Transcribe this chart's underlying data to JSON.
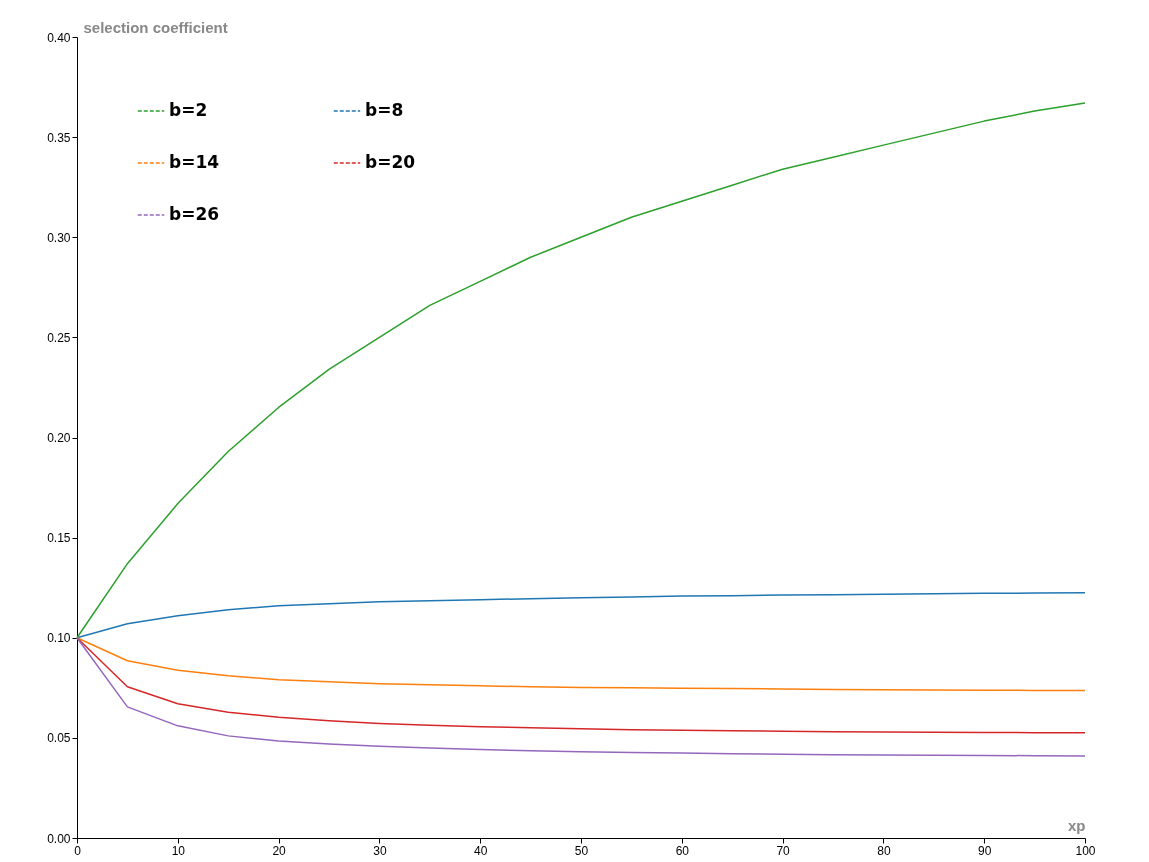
{
  "chart_data": {
    "type": "line",
    "xlabel": "xp",
    "ylabel": "selection coefficient",
    "x": [
      0,
      5,
      10,
      15,
      20,
      25,
      30,
      35,
      40,
      45,
      50,
      55,
      60,
      65,
      70,
      75,
      80,
      85,
      90,
      95,
      100
    ],
    "series": [
      {
        "name": "b=2",
        "color": "#2ca02c",
        "values": [
          0.1,
          0.137,
          0.167,
          0.193,
          0.215,
          0.234,
          0.25,
          0.266,
          0.278,
          0.29,
          0.3,
          0.31,
          0.318,
          0.326,
          0.334,
          0.34,
          0.346,
          0.352,
          0.358,
          0.363,
          0.367
        ]
      },
      {
        "name": "b=8",
        "color": "#1f77b4",
        "values": [
          0.1,
          0.107,
          0.111,
          0.114,
          0.116,
          0.117,
          0.118,
          0.1185,
          0.119,
          0.1195,
          0.12,
          0.1204,
          0.1208,
          0.121,
          0.1213,
          0.1215,
          0.1217,
          0.122,
          0.1222,
          0.1223,
          0.1225
        ]
      },
      {
        "name": "b=14",
        "color": "#ff7f0e",
        "values": [
          0.1,
          0.0885,
          0.0838,
          0.081,
          0.079,
          0.078,
          0.077,
          0.0765,
          0.076,
          0.0755,
          0.0752,
          0.075,
          0.0748,
          0.0746,
          0.0744,
          0.0742,
          0.074,
          0.0739,
          0.0738,
          0.0737,
          0.0736
        ]
      },
      {
        "name": "b=20",
        "color": "#d62728",
        "values": [
          0.1,
          0.0755,
          0.067,
          0.0628,
          0.0603,
          0.0585,
          0.0572,
          0.0563,
          0.0556,
          0.055,
          0.0545,
          0.0541,
          0.0538,
          0.0535,
          0.0533,
          0.0531,
          0.0529,
          0.0528,
          0.0527,
          0.0526,
          0.0525
        ]
      },
      {
        "name": "b=26",
        "color": "#9467bd",
        "values": [
          0.1,
          0.0655,
          0.056,
          0.051,
          0.0485,
          0.047,
          0.0458,
          0.0449,
          0.0442,
          0.0436,
          0.0431,
          0.0427,
          0.0424,
          0.0421,
          0.0418,
          0.0416,
          0.0414,
          0.0413,
          0.0412,
          0.0411,
          0.041
        ]
      }
    ],
    "xlim": [
      0,
      100
    ],
    "xticks": [
      0,
      10,
      20,
      30,
      40,
      50,
      60,
      70,
      80,
      90,
      100
    ],
    "ylim": [
      0,
      0.4
    ],
    "yticks": [
      {
        "value": 0,
        "label": "0.00"
      },
      {
        "value": 0.05,
        "label": "0.05"
      },
      {
        "value": 0.1,
        "label": "0.10"
      },
      {
        "value": 0.15,
        "label": "0.15"
      },
      {
        "value": 0.2,
        "label": "0.20"
      },
      {
        "value": 0.25,
        "label": "0.25"
      },
      {
        "value": 0.3,
        "label": "0.30"
      },
      {
        "value": 0.35,
        "label": "0.35"
      },
      {
        "value": 0.4,
        "label": "0.40"
      }
    ],
    "grid": false,
    "legend": "top left",
    "line_style": "solid",
    "marker": "none"
  }
}
